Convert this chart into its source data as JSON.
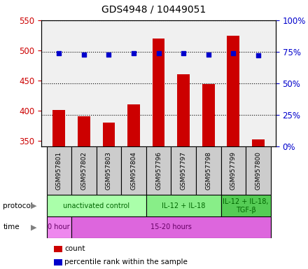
{
  "title": "GDS4948 / 10449051",
  "samples": [
    "GSM957801",
    "GSM957802",
    "GSM957803",
    "GSM957804",
    "GSM957796",
    "GSM957797",
    "GSM957798",
    "GSM957799",
    "GSM957800"
  ],
  "counts": [
    401,
    390,
    380,
    410,
    519,
    460,
    444,
    524,
    352
  ],
  "percentile_ranks": [
    74,
    73,
    73,
    74,
    74,
    74,
    73,
    74,
    72
  ],
  "ylim_left": [
    340,
    550
  ],
  "ylim_right": [
    0,
    100
  ],
  "yticks_left": [
    350,
    400,
    450,
    500,
    550
  ],
  "yticks_right": [
    0,
    25,
    50,
    75,
    100
  ],
  "bar_color": "#cc0000",
  "dot_color": "#0000cc",
  "protocol_groups": [
    {
      "label": "unactivated control",
      "start": 0,
      "end": 4,
      "color": "#aaffaa"
    },
    {
      "label": "IL-12 + IL-18",
      "start": 4,
      "end": 7,
      "color": "#88ee88"
    },
    {
      "label": "IL-12 + IL-18,\nTGF-β",
      "start": 7,
      "end": 9,
      "color": "#55cc55"
    }
  ],
  "time_groups": [
    {
      "label": "0 hour",
      "start": 0,
      "end": 1,
      "color": "#ee88ee"
    },
    {
      "label": "15-20 hours",
      "start": 1,
      "end": 9,
      "color": "#dd66dd"
    }
  ],
  "legend_count_label": "count",
  "legend_pct_label": "percentile rank within the sample",
  "bg_color": "#ffffff"
}
